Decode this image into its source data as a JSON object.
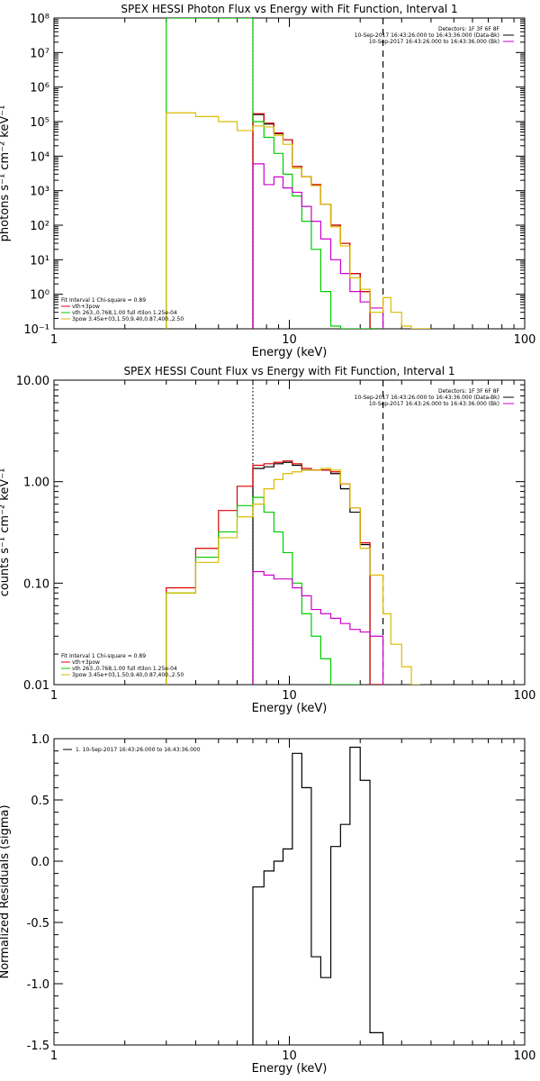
{
  "chart_data": [
    {
      "type": "line",
      "title": "SPEX HESSI Photon Flux vs Energy with Fit Function, Interval 1",
      "xlabel": "Energy (keV)",
      "ylabel": "photons s⁻¹ cm⁻² keV⁻¹",
      "xscale": "log",
      "yscale": "log",
      "xlim": [
        1,
        100
      ],
      "ylim": [
        0.1,
        100000000
      ],
      "xticks": [
        {
          "v": 1,
          "t": "1"
        },
        {
          "v": 10,
          "t": "10"
        },
        {
          "v": 100,
          "t": "100"
        }
      ],
      "yticks": [
        {
          "v": 0.1,
          "t": "10⁻¹"
        },
        {
          "v": 1,
          "t": "10⁰"
        },
        {
          "v": 10,
          "t": "10¹"
        },
        {
          "v": 100,
          "t": "10²"
        },
        {
          "v": 1000,
          "t": "10³"
        },
        {
          "v": 10000,
          "t": "10⁴"
        },
        {
          "v": 100000,
          "t": "10⁵"
        },
        {
          "v": 1000000,
          "t": "10⁶"
        },
        {
          "v": 10000000,
          "t": "10⁷"
        },
        {
          "v": 100000000,
          "t": "10⁸"
        }
      ],
      "vlines": [
        {
          "x": 7.0,
          "style": "dotted",
          "color": "#000000"
        },
        {
          "x": 25.0,
          "style": "dashed",
          "color": "#000000"
        }
      ],
      "legend_top": [
        {
          "text": "Detectors: 1F 3F 6F 8F",
          "color": null
        },
        {
          "text": "10-Sep-2017 16:43:26.000 to 16:43:36.000 (Data-Bk)",
          "color": "#000000"
        },
        {
          "text": "10-Sep-2017 16:43:26.000 to 16:43:36.000 (Bk)",
          "color": "#cc00cc"
        }
      ],
      "legend_bottom": [
        {
          "text": "Fit Interval 1   Chi-square = 0.89",
          "color": null
        },
        {
          "text": "vth+3pow",
          "color": "#dd0000"
        },
        {
          "text": "vth 263.,0.768,1.00  full rtilon 1.25e-04",
          "color": "#00cc00"
        },
        {
          "text": "3pow 3.45e+03,1.50,9.40,0.87,400.,2.50",
          "color": "#ddbb00"
        }
      ],
      "series": [
        {
          "color": "#000000",
          "bins": [
            7.0,
            7.8,
            8.6,
            9.4,
            10.3,
            11.3,
            12.4,
            13.6,
            15.0,
            16.5,
            18.1,
            20.0,
            22.0,
            25.0
          ],
          "values": [
            160000,
            85000,
            45000,
            30000,
            5000,
            2500,
            1500,
            400,
            100,
            30,
            4,
            1.2,
            0.1
          ]
        },
        {
          "color": "#dd0000",
          "bins": [
            7.0,
            7.8,
            8.6,
            9.4,
            10.3,
            11.3,
            12.4,
            13.6,
            15.0,
            16.5,
            18.1,
            20.0,
            22.0,
            25.0
          ],
          "values": [
            170000,
            90000,
            47000,
            30000,
            5000,
            2500,
            1500,
            400,
            100,
            30,
            4,
            1.2,
            0.1
          ]
        },
        {
          "color": "#00cc00",
          "bins": [
            3.0,
            7.0,
            7.8,
            8.6,
            9.4,
            10.3,
            11.3,
            12.4,
            13.6,
            15.0,
            16.5,
            18.1,
            20.0,
            25.0
          ],
          "values": [
            100000000,
            100000,
            35000,
            12000,
            3000,
            700,
            130,
            20,
            1.2,
            0.12,
            0.1,
            0.1,
            0.1
          ]
        },
        {
          "color": "#cc00cc",
          "bins": [
            7.0,
            7.8,
            8.6,
            9.4,
            10.3,
            11.3,
            12.4,
            13.6,
            15.0,
            16.5,
            18.1,
            20.0,
            22.0,
            25.0
          ],
          "values": [
            6000,
            1500,
            2500,
            1200,
            900,
            350,
            130,
            40,
            10,
            4,
            1.2,
            0.6,
            0.4
          ]
        },
        {
          "color": "#ddbb00",
          "bins": [
            3.0,
            4.0,
            5.0,
            6.0,
            7.0,
            7.8,
            8.6,
            9.4,
            10.3,
            11.3,
            12.4,
            13.6,
            15.0,
            16.5,
            18.1,
            20.0,
            22.0,
            25.0,
            27.0,
            30.0,
            33.0,
            36.0,
            40.0
          ],
          "values": [
            180000,
            140000,
            100000,
            55000,
            75000,
            70000,
            40000,
            22000,
            4500,
            2500,
            1400,
            400,
            90,
            25,
            3,
            1.4,
            0.3,
            0.8,
            0.3,
            0.12,
            0.1,
            0.1
          ]
        }
      ]
    },
    {
      "type": "line",
      "title": "SPEX HESSI Count Flux vs Energy with Fit Function, Interval 1",
      "xlabel": "Energy (keV)",
      "ylabel": "counts s⁻¹ cm⁻² keV⁻¹",
      "xscale": "log",
      "yscale": "log",
      "xlim": [
        1,
        100
      ],
      "ylim": [
        0.01,
        10
      ],
      "xticks": [
        {
          "v": 1,
          "t": "1"
        },
        {
          "v": 10,
          "t": "10"
        },
        {
          "v": 100,
          "t": "100"
        }
      ],
      "yticks": [
        {
          "v": 0.01,
          "t": "0.01"
        },
        {
          "v": 0.1,
          "t": "0.10"
        },
        {
          "v": 1,
          "t": "1.00"
        },
        {
          "v": 10,
          "t": "10.00"
        }
      ],
      "vlines": [
        {
          "x": 7.0,
          "style": "dotted",
          "color": "#000000"
        },
        {
          "x": 25.0,
          "style": "dashed",
          "color": "#000000"
        }
      ],
      "legend_top": [
        {
          "text": "Detectors: 1F 3F 6F 8F",
          "color": null
        },
        {
          "text": "10-Sep-2017 16:43:26.000 to 16:43:36.000 (Data-Bk)",
          "color": "#000000"
        },
        {
          "text": "10-Sep-2017 16:43:26.000 to 16:43:36.000 (Bk)",
          "color": "#cc00cc"
        }
      ],
      "legend_bottom": [
        {
          "text": "Fit Interval 1   Chi-square = 0.89",
          "color": null
        },
        {
          "text": "vth+3pow",
          "color": "#dd0000"
        },
        {
          "text": "vth 263.,0.768,1.00  full rtilon 1.25e-04",
          "color": "#00cc00"
        },
        {
          "text": "3pow 3.45e+03,1.50,9.40,0.87,400.,2.50",
          "color": "#ddbb00"
        }
      ],
      "series": [
        {
          "color": "#000000",
          "bins": [
            7.0,
            7.8,
            8.6,
            9.4,
            10.3,
            11.3,
            12.4,
            13.6,
            15.0,
            16.5,
            18.1,
            20.0,
            22.0,
            25.0
          ],
          "values": [
            1.35,
            1.4,
            1.5,
            1.55,
            1.45,
            1.3,
            1.3,
            1.3,
            1.2,
            0.85,
            0.5,
            0.24,
            0.01
          ]
        },
        {
          "color": "#dd0000",
          "bins": [
            3.0,
            4.0,
            5.0,
            6.0,
            7.0,
            7.8,
            8.6,
            9.4,
            10.3,
            11.3,
            12.4,
            13.6,
            15.0,
            16.5,
            18.1,
            20.0,
            22.0,
            25.0
          ],
          "values": [
            0.09,
            0.22,
            0.52,
            0.9,
            1.45,
            1.5,
            1.55,
            1.6,
            1.5,
            1.35,
            1.3,
            1.3,
            1.25,
            0.95,
            0.55,
            0.25,
            0.01
          ]
        },
        {
          "color": "#00cc00",
          "bins": [
            3.0,
            4.0,
            5.0,
            6.0,
            7.0,
            7.8,
            8.6,
            9.4,
            10.3,
            11.3,
            12.4,
            13.6,
            15.0,
            16.5,
            20.0
          ],
          "values": [
            0.08,
            0.18,
            0.32,
            0.58,
            0.7,
            0.5,
            0.32,
            0.2,
            0.1,
            0.05,
            0.03,
            0.018,
            0.01,
            0.01
          ]
        },
        {
          "color": "#cc00cc",
          "bins": [
            7.0,
            7.8,
            8.6,
            9.4,
            10.3,
            11.3,
            12.4,
            13.6,
            15.0,
            16.5,
            18.1,
            20.0,
            22.0,
            25.0
          ],
          "values": [
            0.13,
            0.12,
            0.11,
            0.11,
            0.09,
            0.075,
            0.055,
            0.05,
            0.045,
            0.04,
            0.035,
            0.033,
            0.03
          ]
        },
        {
          "color": "#ddbb00",
          "bins": [
            3.0,
            4.0,
            5.0,
            6.0,
            7.0,
            7.8,
            8.6,
            9.4,
            10.3,
            11.3,
            12.4,
            13.6,
            15.0,
            16.5,
            18.1,
            20.0,
            22.0,
            25.0,
            27.0,
            30.0,
            33.0,
            36.0
          ],
          "values": [
            0.08,
            0.16,
            0.28,
            0.45,
            0.6,
            0.85,
            1.05,
            1.2,
            1.25,
            1.3,
            1.3,
            1.35,
            1.3,
            0.95,
            0.55,
            0.22,
            0.12,
            0.05,
            0.025,
            0.015,
            0.01
          ]
        }
      ]
    },
    {
      "type": "line",
      "title": "",
      "xlabel": "Energy (keV)",
      "ylabel": "Normalized Residuals (sigma)",
      "xscale": "log",
      "yscale": "linear",
      "xlim": [
        1,
        100
      ],
      "ylim": [
        -1.5,
        1.0
      ],
      "xticks": [
        {
          "v": 1,
          "t": "1"
        },
        {
          "v": 10,
          "t": "10"
        },
        {
          "v": 100,
          "t": "100"
        }
      ],
      "yticks": [
        {
          "v": -1.5,
          "t": "-1.5"
        },
        {
          "v": -1.0,
          "t": "-1.0"
        },
        {
          "v": -0.5,
          "t": "-0.5"
        },
        {
          "v": 0.0,
          "t": "0.0"
        },
        {
          "v": 0.5,
          "t": "0.5"
        },
        {
          "v": 1.0,
          "t": "1.0"
        }
      ],
      "vlines": [],
      "legend_top": [
        {
          "text": "1. 10-Sep-2017 16:43:26.000 to 16:43:36.000",
          "color": "#000000"
        }
      ],
      "legend_bottom": [],
      "series": [
        {
          "color": "#000000",
          "bins": [
            7.0,
            7.8,
            8.6,
            9.4,
            10.3,
            11.3,
            12.4,
            13.6,
            15.0,
            16.5,
            18.1,
            20.0,
            22.0,
            25.0
          ],
          "values": [
            -0.21,
            -0.08,
            0.0,
            0.1,
            0.88,
            0.6,
            -0.78,
            -0.95,
            0.12,
            0.3,
            0.93,
            0.66,
            -1.4
          ]
        }
      ]
    }
  ]
}
